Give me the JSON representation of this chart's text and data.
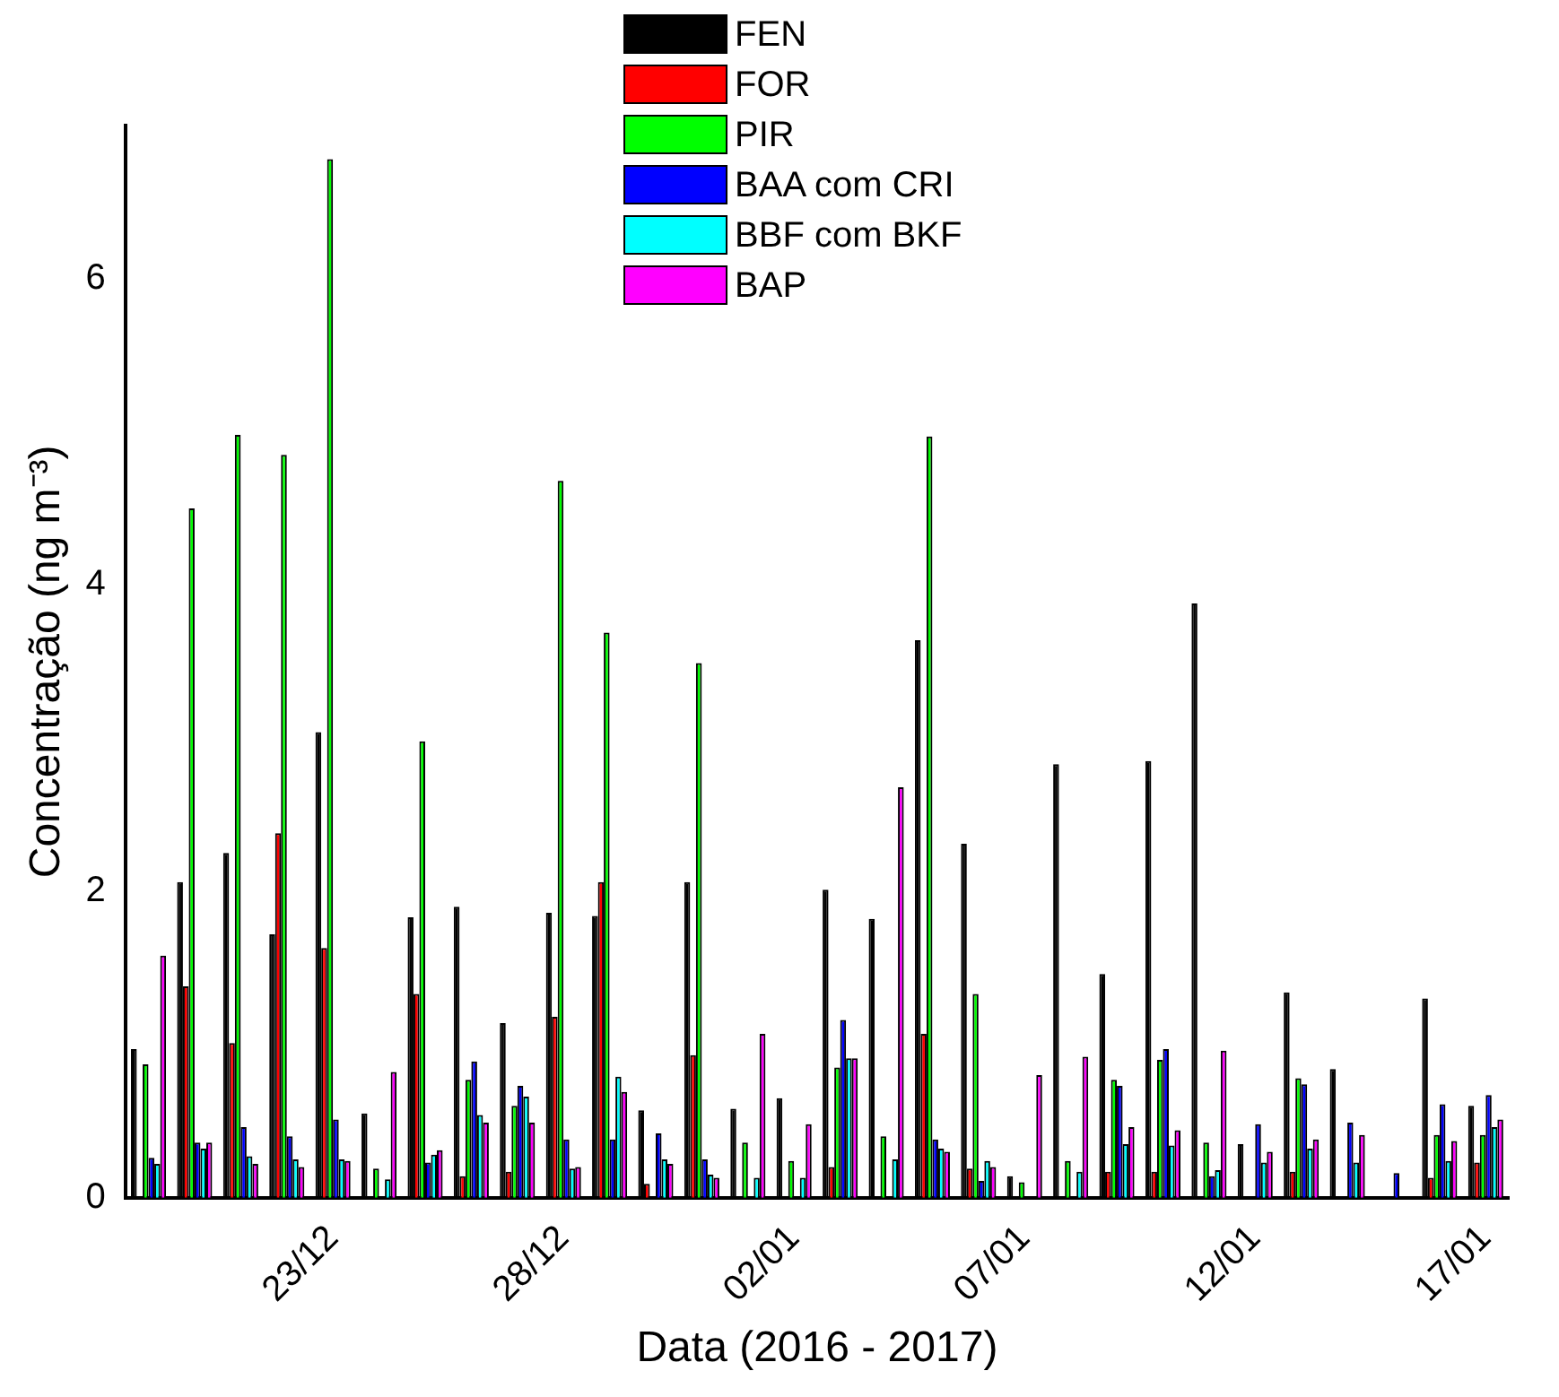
{
  "chart_data": {
    "type": "bar",
    "xlabel": "Data (2016 - 2017)",
    "ylabel": "Concentração (ng m⁻³)",
    "categories": [
      null,
      null,
      null,
      null,
      "23/12",
      null,
      null,
      null,
      null,
      "28/12",
      null,
      null,
      null,
      null,
      "02/01",
      null,
      null,
      null,
      null,
      "07/01",
      null,
      null,
      null,
      null,
      "12/01",
      null,
      null,
      null,
      null,
      "17/01"
    ],
    "series": [
      {
        "name": "FEN",
        "color": "#000000",
        "values": [
          0.97,
          2.06,
          2.25,
          1.72,
          3.04,
          0.55,
          1.83,
          1.9,
          1.14,
          1.86,
          1.84,
          0.57,
          2.06,
          0.58,
          0.65,
          2.01,
          1.82,
          3.64,
          2.31,
          0.14,
          2.83,
          1.46,
          2.85,
          3.88,
          0.35,
          1.34,
          0.84,
          0,
          1.3,
          0.6
        ]
      },
      {
        "name": "FOR",
        "color": "#ff0000",
        "values": [
          0,
          1.38,
          1.01,
          2.38,
          1.63,
          0,
          1.33,
          0.14,
          0.17,
          1.18,
          2.06,
          0.09,
          0.93,
          0,
          0,
          0.2,
          0,
          1.07,
          0.19,
          0,
          0,
          0.17,
          0.17,
          0,
          0,
          0.17,
          0,
          0,
          0.13,
          0.23
        ]
      },
      {
        "name": "PIR",
        "color": "#00ff00",
        "values": [
          0.87,
          4.5,
          4.98,
          4.85,
          6.78,
          0.19,
          2.98,
          0.77,
          0.6,
          4.68,
          3.69,
          0,
          3.49,
          0.36,
          0.24,
          0.85,
          0.4,
          4.97,
          1.33,
          0.1,
          0.24,
          0.77,
          0.9,
          0.36,
          0,
          0.78,
          0,
          0,
          0.41,
          0.41
        ]
      },
      {
        "name": "BAA com CRI",
        "color": "#0000ff",
        "values": [
          0.26,
          0.36,
          0.46,
          0.4,
          0.51,
          0,
          0.23,
          0.89,
          0.73,
          0.38,
          0.38,
          0.42,
          0.25,
          0,
          0,
          1.16,
          0,
          0.38,
          0.11,
          0,
          0,
          0.73,
          0.97,
          0.14,
          0.48,
          0.74,
          0.49,
          0.16,
          0.61,
          0.67
        ]
      },
      {
        "name": "BBF com BKF",
        "color": "#00ffff",
        "values": [
          0.22,
          0.32,
          0.27,
          0.25,
          0.25,
          0.12,
          0.28,
          0.54,
          0.66,
          0.19,
          0.79,
          0.25,
          0.15,
          0.13,
          0.13,
          0.91,
          0.25,
          0.32,
          0.24,
          0,
          0.17,
          0.35,
          0.34,
          0.18,
          0.23,
          0.32,
          0.23,
          0,
          0.24,
          0.46
        ]
      },
      {
        "name": "BAP",
        "color": "#ff00ff",
        "values": [
          1.58,
          0.36,
          0.22,
          0.2,
          0.24,
          0.82,
          0.31,
          0.49,
          0.49,
          0.2,
          0.69,
          0.22,
          0.13,
          1.07,
          0.48,
          0.91,
          2.68,
          0.3,
          0.2,
          0.8,
          0.92,
          0.46,
          0.44,
          0.96,
          0.3,
          0.38,
          0.41,
          0,
          0.37,
          0.51
        ]
      }
    ],
    "ylim": [
      0,
      7
    ],
    "yticks": [
      0,
      2,
      4,
      6
    ],
    "grid": false,
    "legend": "top"
  }
}
